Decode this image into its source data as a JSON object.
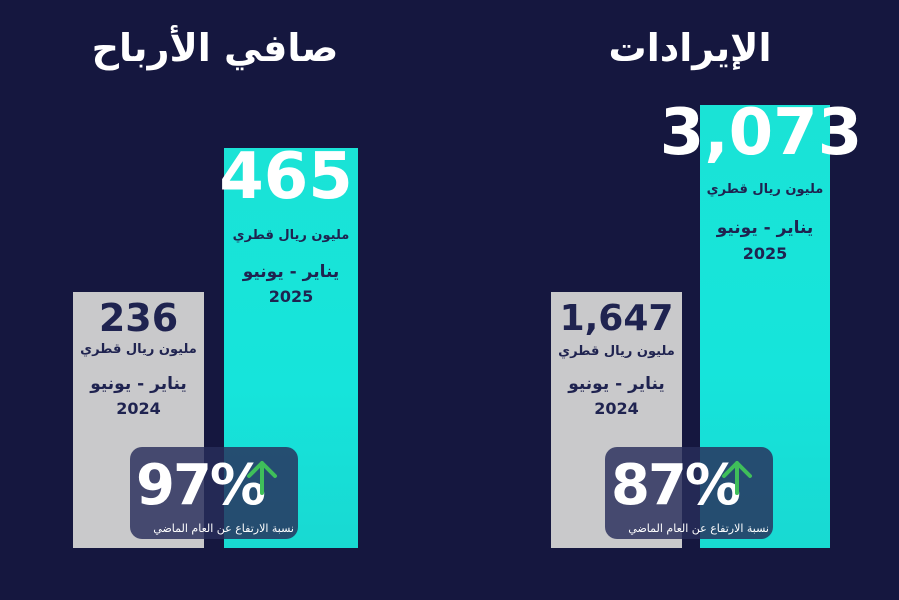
{
  "chart_data": [
    {
      "type": "bar",
      "title": "صافي الأرباح",
      "unit": "مليون ريال قطري",
      "categories": [
        "يناير - يونيو 2024",
        "يناير - يونيو 2025"
      ],
      "periods": [
        {
          "period": "يناير - يونيو",
          "year": "2024",
          "value": 236,
          "label": "236"
        },
        {
          "period": "يناير - يونيو",
          "year": "2025",
          "value": 465,
          "label": "465"
        }
      ],
      "values": [
        236,
        465
      ],
      "change": {
        "value": "97%",
        "label": "نسبة الارتفاع عن العام الماضي"
      }
    },
    {
      "type": "bar",
      "title": "الإيرادات",
      "unit": "مليون ريال قطري",
      "categories": [
        "يناير - يونيو 2024",
        "يناير - يونيو 2025"
      ],
      "periods": [
        {
          "period": "يناير - يونيو",
          "year": "2024",
          "value": 1647,
          "label": "1,647"
        },
        {
          "period": "يناير - يونيو",
          "year": "2025",
          "value": 3073,
          "label": "3,073"
        }
      ],
      "values": [
        1647,
        3073
      ],
      "change": {
        "value": "87%",
        "label": "نسبة الارتفاع عن العام الماضي"
      }
    }
  ],
  "colors": {
    "background": "#15173f",
    "bar_previous": "#c9c9cb",
    "bar_current": "#18e3d9",
    "number_previous": "#1f2350",
    "number_current": "#ffffff",
    "label_dark": "#1f2350",
    "arrow": "#3fbf5a"
  },
  "icons": {
    "change_arrow": "up-arrow-icon"
  }
}
